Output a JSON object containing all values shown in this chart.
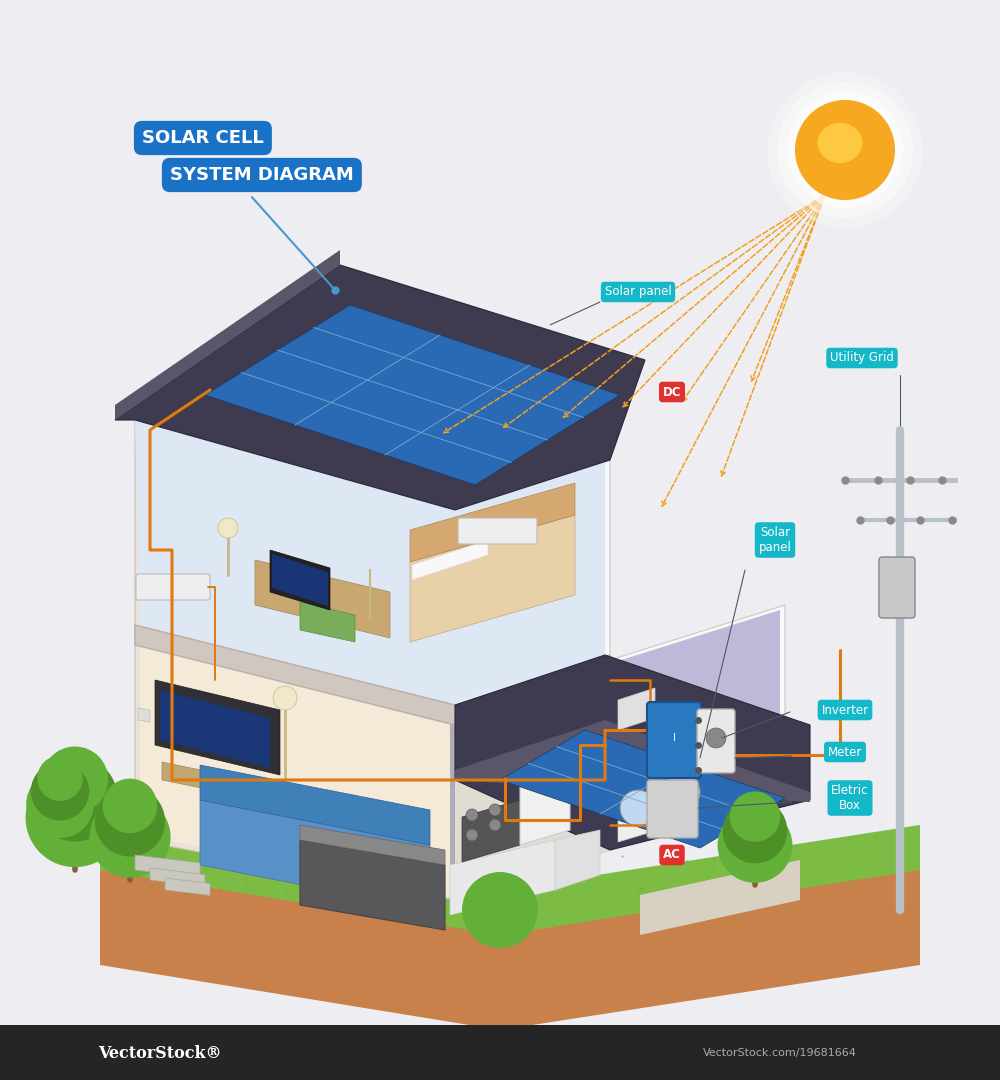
{
  "bg_color": "#eeeef2",
  "title_bg_color": "#1a72c7",
  "title_text_color": "#ffffff",
  "teal_label_color": "#15b8c8",
  "red_label_color": "#e03030",
  "orange_wire_color": "#e07a10",
  "blue_line_color": "#4499cc",
  "sun_outer": "#f5a820",
  "sun_inner": "#ffd04a",
  "ground_color": "#c8814a",
  "grass_color": "#7dbc44",
  "grass_dark": "#6aa836",
  "roof_color": "#3e3a50",
  "wall_left": "#e8e2da",
  "wall_front": "#f5f0eb",
  "wall_white": "#f8f8f8",
  "floor_living": "#f5ead8",
  "floor_upper": "#dde8f4",
  "floor_kitchen": "#aaa8b8",
  "floor_laundry": "#c0b8d8",
  "floor_divider": "#d0c8c0",
  "solar_blue": "#2a6ab5",
  "solar_grid": "#7ba8d0",
  "pole_color": "#b8c0c8",
  "inverter_blue": "#2a78c0",
  "meter_white": "#e8e8e8",
  "ebox_gray": "#d0d0d0",
  "tv_dark": "#303035",
  "tv_screen": "#1a3878",
  "sofa_blue": "#5890c8",
  "desk_wood": "#c8a870",
  "bed_color": "#e8d0a8",
  "tree_green": "#62b038",
  "tree_dark": "#4e9028",
  "trunk_brown": "#8b5e30",
  "bottom_bar": "#252525",
  "watermark1": "VectorStock®",
  "watermark2": "VectorStock.com/19681664",
  "labels": {
    "title1": "SOLAR CELL",
    "title2": "SYSTEM DIAGRAM",
    "solar_panel1": "Solar panel",
    "solar_panel2": "Solar\npanel",
    "dc": "DC",
    "ac": "AC",
    "utility_grid": "Utility Grid",
    "inverter": "Inverter",
    "meter": "Meter",
    "eletric_box": "Eletric\nBox"
  }
}
